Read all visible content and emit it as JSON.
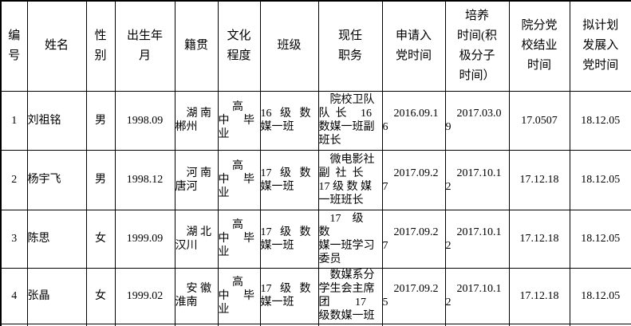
{
  "page": {
    "background": "#ffffff",
    "text_color": "#000000",
    "border_color": "#000000"
  },
  "table": {
    "headers": [
      "编\n号",
      "姓名",
      "性\n别",
      "出生年\n月",
      "籍贯",
      "文化\n程度",
      "班级",
      "现任\n职务",
      "申请入\n党时间",
      "培养\n时间(积\n极分子\n时间）",
      "院分党\n校结业\n时间",
      "拟计划\n发展入\n党时间"
    ],
    "rows": [
      {
        "cells": [
          "1",
          "刘祖铭",
          "男",
          "1998.09",
          "　湖 南\n郴州",
          "　 高\n中　 毕\n业",
          "16   级   数\n媒一班",
          "　院校卫队\n队  长　 16\n数媒一班副\n班长",
          "　2016.09.1\n6",
          "　2017.03.0\n9",
          "17.0507",
          "18.12.05"
        ]
      },
      {
        "cells": [
          "2",
          "杨宇飞",
          "男",
          "1998.12",
          "　河 南\n唐河",
          "　 高\n中　 毕\n业",
          "17   级   数\n媒一班",
          "　微电影社\n副  社  长\n17 级 数 媒\n一班班长",
          "　2017.09.2\n7",
          "　2017.10.1\n2",
          "17.12.18",
          "18.12.05"
        ]
      },
      {
        "cells": [
          "3",
          "陈思",
          "女",
          "1999.09",
          "　湖 北\n汉川",
          "　 高\n中　 毕\n业",
          "17   级   数\n媒一班",
          "　17　级　数\n媒一班学习\n委员",
          "　2017.09.2\n7",
          "　2017.10.1\n2",
          "17.12.18",
          "18.12.05"
        ]
      },
      {
        "cells": [
          "4",
          "张晶",
          "女",
          "1999.02",
          "　安 徽\n淮南",
          "　 高\n中　 毕\n业",
          "17   级   数\n媒一班",
          "　数媒系分\n学生会主席\n团　　 17\n级数媒一班",
          "　2017.09.2\n5",
          "　2017.10.1\n2",
          "17.12.18",
          "18.12.05"
        ]
      }
    ]
  }
}
